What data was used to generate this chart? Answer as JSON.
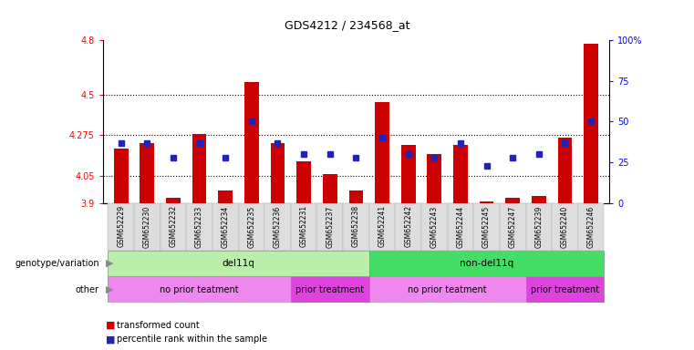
{
  "title": "GDS4212 / 234568_at",
  "samples": [
    "GSM652229",
    "GSM652230",
    "GSM652232",
    "GSM652233",
    "GSM652234",
    "GSM652235",
    "GSM652236",
    "GSM652231",
    "GSM652237",
    "GSM652238",
    "GSM652241",
    "GSM652242",
    "GSM652243",
    "GSM652244",
    "GSM652245",
    "GSM652247",
    "GSM652239",
    "GSM652240",
    "GSM652246"
  ],
  "bar_values": [
    4.2,
    4.23,
    3.93,
    4.28,
    3.97,
    4.57,
    4.23,
    4.13,
    4.06,
    3.97,
    4.46,
    4.22,
    4.17,
    4.22,
    3.91,
    3.93,
    3.94,
    4.26,
    4.78
  ],
  "pct_values": [
    37,
    37,
    28,
    37,
    28,
    50,
    37,
    30,
    30,
    28,
    40,
    30,
    28,
    37,
    23,
    28,
    30,
    37,
    50
  ],
  "ymin": 3.9,
  "ymax": 4.8,
  "yticks_left": [
    3.9,
    4.05,
    4.275,
    4.5,
    4.8
  ],
  "ytick_labels_left": [
    "3.9",
    "4.05",
    "4.275",
    "4.5",
    "4.8"
  ],
  "right_pcts": [
    0,
    25,
    50,
    75,
    100
  ],
  "right_labels": [
    "0",
    "25",
    "50",
    "75",
    "100%"
  ],
  "bar_color": "#cc0000",
  "dot_color": "#2222bb",
  "gridlines": [
    4.05,
    4.275,
    4.5
  ],
  "genotype_groups": [
    {
      "label": "del11q",
      "start": 0,
      "end": 10,
      "color": "#bbeeaa"
    },
    {
      "label": "non-del11q",
      "start": 10,
      "end": 19,
      "color": "#44dd66"
    }
  ],
  "other_groups": [
    {
      "label": "no prior teatment",
      "start": 0,
      "end": 7,
      "color": "#ee88ee"
    },
    {
      "label": "prior treatment",
      "start": 7,
      "end": 10,
      "color": "#dd44dd"
    },
    {
      "label": "no prior teatment",
      "start": 10,
      "end": 16,
      "color": "#ee88ee"
    },
    {
      "label": "prior treatment",
      "start": 16,
      "end": 19,
      "color": "#dd44dd"
    }
  ],
  "label_genotype": "genotype/variation",
  "label_other": "other",
  "legend_red": "transformed count",
  "legend_blue": "percentile rank within the sample"
}
